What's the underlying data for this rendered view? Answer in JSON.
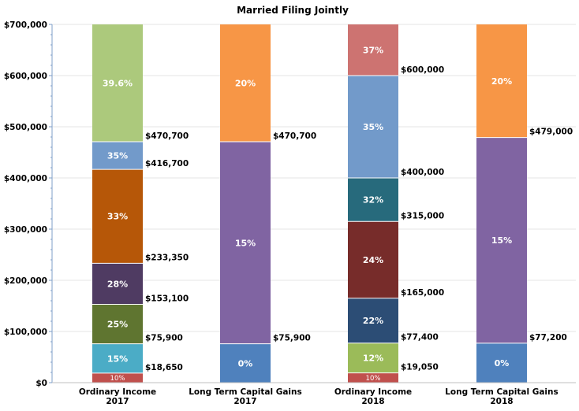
{
  "chart_data": {
    "type": "bar",
    "stacked": true,
    "title": "Married Filing Jointly",
    "ylim": [
      0,
      700000
    ],
    "y_ticks": [
      "$0",
      "$100,000",
      "$200,000",
      "$300,000",
      "$400,000",
      "$500,000",
      "$600,000",
      "$700,000"
    ],
    "grid": true,
    "bars": [
      {
        "category": [
          "Ordinary Income",
          "2017"
        ],
        "segments": [
          {
            "from": 0,
            "to": 18650,
            "label": "10%",
            "color": "#c0504d",
            "small": true
          },
          {
            "from": 18650,
            "to": 75900,
            "label": "15%",
            "color": "#4bacc6"
          },
          {
            "from": 75900,
            "to": 153100,
            "label": "25%",
            "color": "#5f7530"
          },
          {
            "from": 153100,
            "to": 233350,
            "label": "28%",
            "color": "#4f3b62"
          },
          {
            "from": 233350,
            "to": 416700,
            "label": "33%",
            "color": "#b65708"
          },
          {
            "from": 416700,
            "to": 470700,
            "label": "35%",
            "color": "#729aca"
          },
          {
            "from": 470700,
            "to": 700000,
            "label": "39.6%",
            "color": "#acc97c"
          }
        ],
        "thresholds": [
          {
            "value": 18650,
            "label": "$18,650"
          },
          {
            "value": 75900,
            "label": "$75,900"
          },
          {
            "value": 153100,
            "label": "$153,100"
          },
          {
            "value": 233350,
            "label": "$233,350"
          },
          {
            "value": 416700,
            "label": "$416,700"
          },
          {
            "value": 470700,
            "label": "$470,700"
          }
        ]
      },
      {
        "category": [
          "Long Term Capital Gains",
          "2017"
        ],
        "segments": [
          {
            "from": 0,
            "to": 75900,
            "label": "0%",
            "color": "#4f81bd"
          },
          {
            "from": 75900,
            "to": 470700,
            "label": "15%",
            "color": "#8064a2"
          },
          {
            "from": 470700,
            "to": 700000,
            "label": "20%",
            "color": "#f79646"
          }
        ],
        "thresholds": [
          {
            "value": 75900,
            "label": "$75,900"
          },
          {
            "value": 470700,
            "label": "$470,700"
          }
        ]
      },
      {
        "category": [
          "Ordinary Income",
          "2018"
        ],
        "segments": [
          {
            "from": 0,
            "to": 19050,
            "label": "10%",
            "color": "#c0504d",
            "small": true
          },
          {
            "from": 19050,
            "to": 77400,
            "label": "12%",
            "color": "#9bbb59"
          },
          {
            "from": 77400,
            "to": 165000,
            "label": "22%",
            "color": "#2c4d75"
          },
          {
            "from": 165000,
            "to": 315000,
            "label": "24%",
            "color": "#772c2a"
          },
          {
            "from": 315000,
            "to": 400000,
            "label": "32%",
            "color": "#276a7c"
          },
          {
            "from": 400000,
            "to": 600000,
            "label": "35%",
            "color": "#729aca"
          },
          {
            "from": 600000,
            "to": 700000,
            "label": "37%",
            "color": "#cd7371"
          }
        ],
        "thresholds": [
          {
            "value": 19050,
            "label": "$19,050"
          },
          {
            "value": 77400,
            "label": "$77,400"
          },
          {
            "value": 165000,
            "label": "$165,000"
          },
          {
            "value": 315000,
            "label": "$315,000"
          },
          {
            "value": 400000,
            "label": "$400,000"
          },
          {
            "value": 600000,
            "label": "$600,000"
          }
        ]
      },
      {
        "category": [
          "Long Term Capital Gains",
          "2018"
        ],
        "segments": [
          {
            "from": 0,
            "to": 77200,
            "label": "0%",
            "color": "#4f81bd"
          },
          {
            "from": 77200,
            "to": 479000,
            "label": "15%",
            "color": "#8064a2"
          },
          {
            "from": 479000,
            "to": 700000,
            "label": "20%",
            "color": "#f79646"
          }
        ],
        "thresholds": [
          {
            "value": 77200,
            "label": "$77,200"
          },
          {
            "value": 479000,
            "label": "$479,000"
          }
        ]
      }
    ]
  }
}
